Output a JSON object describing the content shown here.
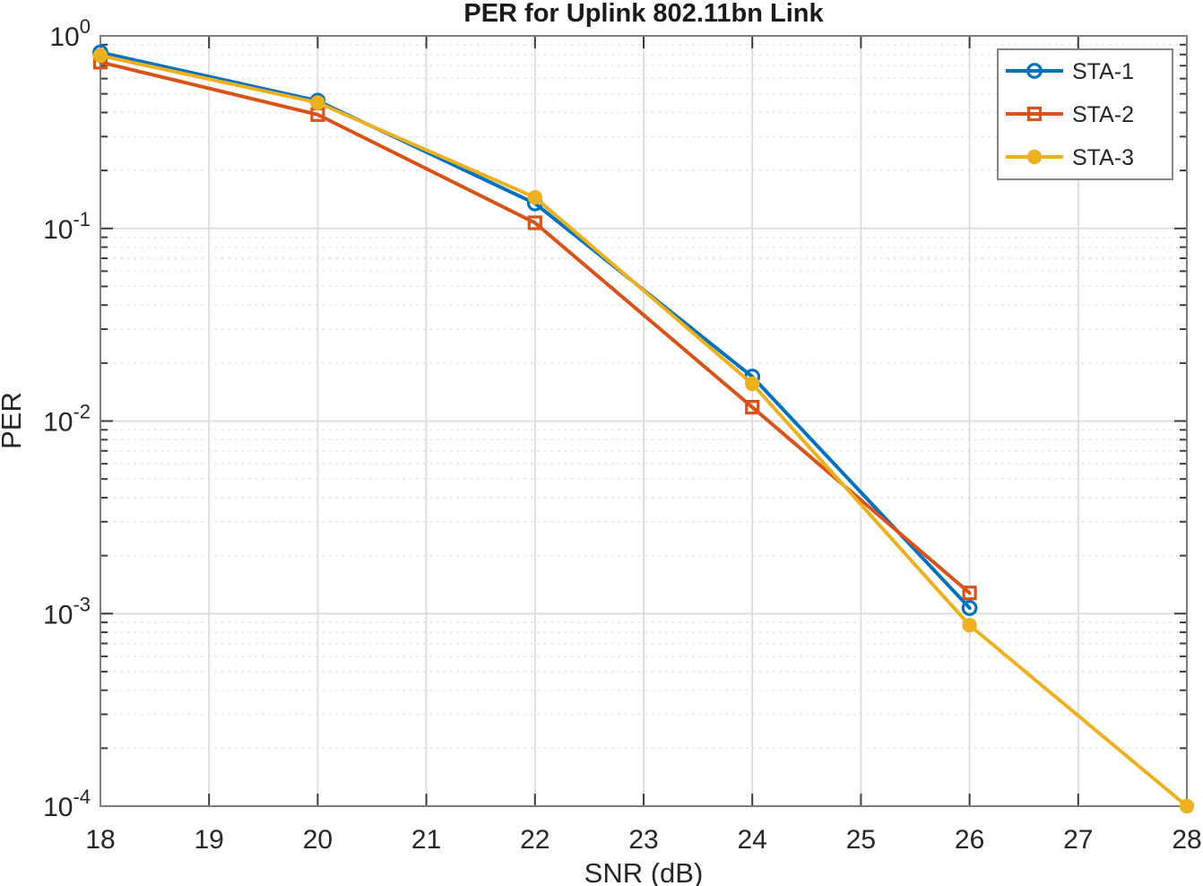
{
  "chart_data": {
    "type": "line",
    "title": "PER for Uplink 802.11bn Link",
    "xlabel": "SNR (dB)",
    "ylabel": "PER",
    "x_scale": "linear",
    "y_scale": "log",
    "xlim": [
      18,
      28
    ],
    "ylim": [
      0.0001,
      1
    ],
    "x_ticks": [
      18,
      19,
      20,
      21,
      22,
      23,
      24,
      25,
      26,
      27,
      28
    ],
    "y_tick_exponents": [
      0,
      -1,
      -2,
      -3,
      -4
    ],
    "grid": true,
    "minor_grid": true,
    "legend_position": "northeast",
    "series": [
      {
        "name": "STA-1",
        "color": "#0072BD",
        "marker": "open-circle",
        "x": [
          18,
          20,
          22,
          24,
          26
        ],
        "y": [
          0.82,
          0.46,
          0.135,
          0.017,
          0.00107
        ]
      },
      {
        "name": "STA-2",
        "color": "#D95319",
        "marker": "open-square",
        "x": [
          18,
          20,
          22,
          24,
          26
        ],
        "y": [
          0.73,
          0.39,
          0.107,
          0.0118,
          0.00128
        ]
      },
      {
        "name": "STA-3",
        "color": "#EDB120",
        "marker": "filled-circle",
        "x": [
          18,
          20,
          22,
          24,
          26,
          28
        ],
        "y": [
          0.79,
          0.45,
          0.145,
          0.0156,
          0.00087,
          0.0001
        ]
      }
    ],
    "style": {
      "background": "#ffffff",
      "axis_color": "#7c7c7c",
      "tick_color": "#3b3b3b",
      "text_color": "#262626",
      "title_color": "#1a1a1a",
      "grid_color": "#dcdcdc",
      "minor_grid_color": "#e3e3e3",
      "legend_border_color": "#848484",
      "legend_background": "#ffffff"
    }
  }
}
